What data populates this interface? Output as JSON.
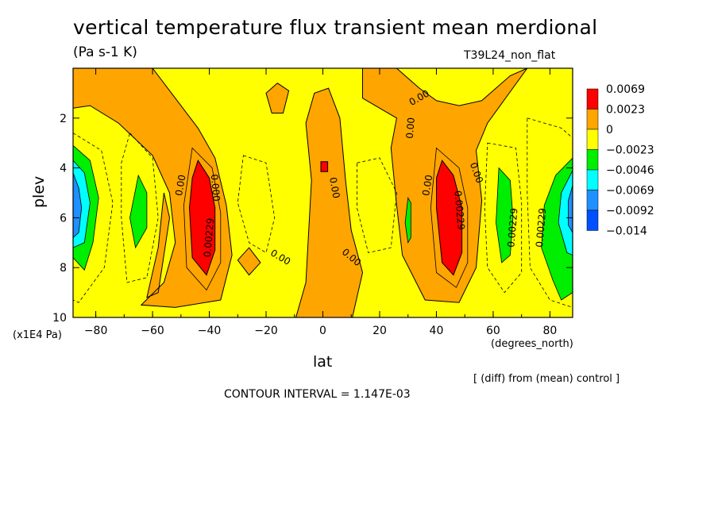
{
  "title": "vertical temperature flux transient mean merdional",
  "units": "(Pa s-1 K)",
  "run_label": "T39L24_non_flat",
  "footer": {
    "diff_note": "[ (diff) from (mean) control ]",
    "contour_interval": "CONTOUR INTERVAL = 1.147E-03"
  },
  "colors": {
    "red": "#ff0000",
    "orange": "#ffa500",
    "yellow": "#ffff00",
    "green": "#00ee00",
    "cyan": "#00ffff",
    "blue": "#1e90ff",
    "darkblue": "#0050ff"
  },
  "chart_data": {
    "type": "heatmap",
    "xlabel": "lat",
    "xunit": "(degrees_north)",
    "ylabel": "plev",
    "yunit": "(x1E4 Pa)",
    "xlim": [
      -88,
      88
    ],
    "ylim": [
      0,
      10
    ],
    "x_ticks": [
      -80,
      -60,
      -40,
      -20,
      0,
      20,
      40,
      60,
      80
    ],
    "x_tick_labels": [
      "−80",
      "−60",
      "−40",
      "−20",
      "0",
      "20",
      "40",
      "60",
      "80"
    ],
    "y_ticks": [
      2,
      4,
      6,
      8,
      10
    ],
    "y_tick_labels": [
      "2",
      "4",
      "6",
      "8",
      "10"
    ],
    "colorbar": {
      "levels": [
        "0.0069",
        "0.0023",
        "0",
        "−0.0023",
        "−0.0046",
        "−0.0069",
        "−0.0092",
        "−0.014"
      ],
      "colors": [
        "#ff0000",
        "#ffa500",
        "#ffff00",
        "#00ee00",
        "#00ffff",
        "#1e90ff",
        "#0050ff"
      ]
    },
    "contour_labels": [
      {
        "text": "0.00",
        "lat": -50,
        "p": 4.7,
        "rot": -80
      },
      {
        "text": "0.000",
        "lat": -38,
        "p": 4.8,
        "rot": 85
      },
      {
        "text": "0.00229",
        "lat": -40,
        "p": 6.8,
        "rot": -85
      },
      {
        "text": "0.00",
        "lat": 4,
        "p": 4.8,
        "rot": 80
      },
      {
        "text": "0.00",
        "lat": -15,
        "p": 7.6,
        "rot": 30
      },
      {
        "text": "0.00",
        "lat": 10,
        "p": 7.6,
        "rot": 40
      },
      {
        "text": "0.00",
        "lat": 34,
        "p": 1.2,
        "rot": -30
      },
      {
        "text": "0.00",
        "lat": 31,
        "p": 2.4,
        "rot": -85
      },
      {
        "text": "0.00",
        "lat": 37,
        "p": 4.7,
        "rot": -80
      },
      {
        "text": "0.00229",
        "lat": 48,
        "p": 5.7,
        "rot": 85
      },
      {
        "text": "0.00",
        "lat": 54,
        "p": 4.2,
        "rot": 70
      },
      {
        "text": "0.00229",
        "lat": 67,
        "p": 6.4,
        "rot": -85
      },
      {
        "text": "0.00229",
        "lat": 77,
        "p": 6.4,
        "rot": -85
      }
    ]
  }
}
